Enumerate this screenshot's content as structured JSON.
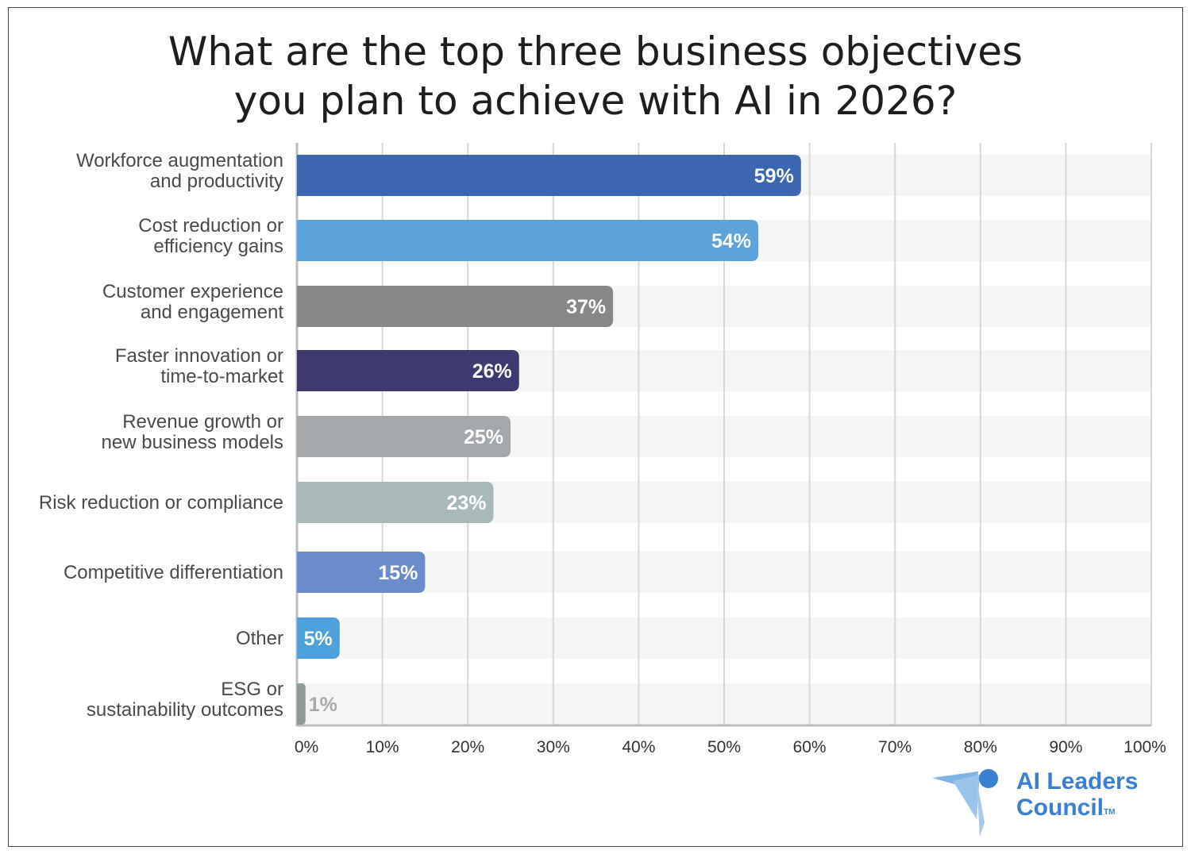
{
  "title": {
    "line1": "What are the top three business objectives",
    "line2": "you plan to achieve with AI in 2026?"
  },
  "chart_data": {
    "type": "bar",
    "orientation": "horizontal",
    "title": "What are the top three business objectives you plan to achieve with AI in 2026?",
    "xlabel": "",
    "ylabel": "",
    "xlim": [
      0,
      100
    ],
    "grid": true,
    "x_ticks": [
      "0%",
      "10%",
      "20%",
      "30%",
      "40%",
      "50%",
      "60%",
      "70%",
      "80%",
      "90%",
      "100%"
    ],
    "categories": [
      [
        "Workforce augmentation",
        "and productivity"
      ],
      [
        "Cost reduction or",
        "efficiency gains"
      ],
      [
        "Customer experience",
        "and engagement"
      ],
      [
        "Faster innovation or",
        "time-to-market"
      ],
      [
        "Revenue growth or",
        "new business models"
      ],
      [
        "Risk reduction or compliance"
      ],
      [
        "Competitive differentiation"
      ],
      [
        "Other"
      ],
      [
        "ESG or",
        "sustainability outcomes"
      ]
    ],
    "values": [
      59,
      54,
      37,
      26,
      25,
      23,
      15,
      5,
      1
    ],
    "value_labels": [
      "59%",
      "54%",
      "37%",
      "26%",
      "25%",
      "23%",
      "15%",
      "5%",
      "1%"
    ],
    "colors": [
      "#3d66b0",
      "#5ba3da",
      "#858789",
      "#3e3970",
      "#a5a8ab",
      "#a8b9ba",
      "#6b8ccb",
      "#4fa1dd",
      "#8d9a98"
    ],
    "label_colors": [
      "#ffffff",
      "#ffffff",
      "#ffffff",
      "#ffffff",
      "#ffffff",
      "#ffffff",
      "#ffffff",
      "#ffffff",
      "#a9a9a9"
    ]
  },
  "logo": {
    "line1": "AI Leaders",
    "line2": "Council",
    "trademark": "TM",
    "color": "#3b7fd0"
  }
}
